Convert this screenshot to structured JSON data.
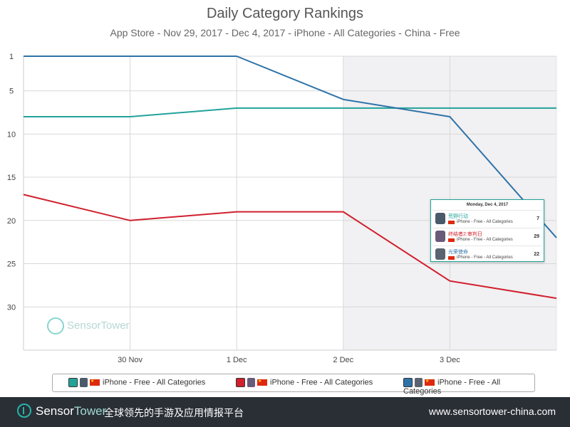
{
  "chart_data": {
    "type": "line",
    "title": "Daily Category Rankings",
    "subtitle": "App Store - Nov 29, 2017 - Dec 4, 2017 - iPhone - All Categories - China - Free",
    "x": [
      "Nov 29",
      "30 Nov",
      "1 Dec",
      "2 Dec",
      "3 Dec",
      "Dec 4"
    ],
    "x_tick_labels": [
      "30 Nov",
      "1 Dec",
      "2 Dec",
      "3 Dec"
    ],
    "y_tick_labels": [
      "1",
      "5",
      "10",
      "15",
      "20",
      "25",
      "30"
    ],
    "y_ticks": [
      1,
      5,
      10,
      15,
      20,
      25,
      30
    ],
    "ylim": [
      1,
      35
    ],
    "y_inverted": true,
    "grid": true,
    "shaded_range": [
      "2 Dec",
      "Dec 4"
    ],
    "series": [
      {
        "color": "#22a39a",
        "values": [
          8,
          8,
          7,
          7,
          7,
          7
        ]
      },
      {
        "color": "#d0202e",
        "values": [
          17,
          20,
          19,
          19,
          27,
          29
        ]
      },
      {
        "color": "#2e73a8",
        "values": [
          1,
          1,
          1,
          6,
          8,
          22
        ]
      }
    ],
    "legend_placement": "bottom"
  },
  "tooltip": {
    "date": "Monday, Dec 4, 2017",
    "rows": [
      {
        "app": "荒野行动",
        "category": "iPhone - Free - All Categories",
        "rank": "7",
        "color": "#22a39a"
      },
      {
        "app": "终结者2:审判日",
        "category": "iPhone - Free - All Categories",
        "rank": "29",
        "color": "#d0202e"
      },
      {
        "app": "光荣使命",
        "category": "iPhone - Free - All Categories",
        "rank": "22",
        "color": "#2e73a8"
      }
    ]
  },
  "legend": [
    {
      "label": "iPhone - Free - All Categories",
      "color": "#22a39a"
    },
    {
      "label": "iPhone - Free - All Categories",
      "color": "#d0202e"
    },
    {
      "label": "iPhone - Free - All Categories",
      "color": "#2e73a8"
    }
  ],
  "watermark": {
    "text": "SensorTower"
  },
  "footer": {
    "brand_a": "Sensor",
    "brand_b": "Tower",
    "tagline": "全球领先的手游及应用情报平台",
    "url": "www.sensortower-china.com"
  }
}
